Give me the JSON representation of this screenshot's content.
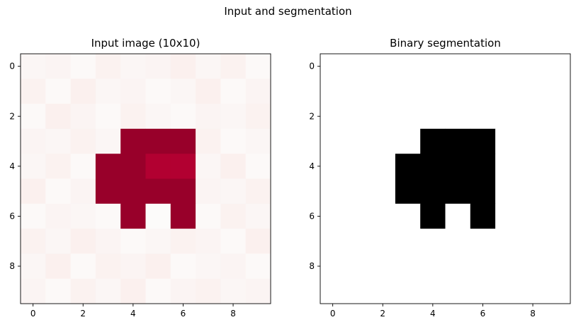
{
  "figure": {
    "suptitle": "Input and segmentation"
  },
  "chart_data": [
    {
      "type": "heatmap",
      "title": "Input image (10x10)",
      "colormap": "RdBu-reversed-style (near-white low, dark red high)",
      "vmin": 0,
      "vmax": 1.1,
      "xlim": [
        -0.5,
        9.5
      ],
      "ylim": [
        9.5,
        -0.5
      ],
      "xticks": [
        0,
        2,
        4,
        6,
        8
      ],
      "yticks": [
        0,
        2,
        4,
        6,
        8
      ],
      "grid": false,
      "values": [
        [
          0.02,
          0.03,
          0.01,
          0.04,
          0.02,
          0.03,
          0.05,
          0.02,
          0.04,
          0.01
        ],
        [
          0.04,
          0.01,
          0.05,
          0.02,
          0.03,
          0.01,
          0.02,
          0.05,
          0.01,
          0.03
        ],
        [
          0.01,
          0.05,
          0.03,
          0.01,
          0.04,
          0.02,
          0.01,
          0.03,
          0.02,
          0.04
        ],
        [
          0.03,
          0.02,
          0.04,
          0.02,
          1.0,
          1.0,
          1.0,
          0.04,
          0.01,
          0.02
        ],
        [
          0.02,
          0.04,
          0.01,
          1.0,
          1.0,
          0.9,
          0.9,
          0.02,
          0.05,
          0.01
        ],
        [
          0.05,
          0.01,
          0.03,
          1.0,
          1.0,
          1.0,
          1.0,
          0.03,
          0.02,
          0.04
        ],
        [
          0.01,
          0.03,
          0.02,
          0.01,
          1.0,
          0.0,
          1.0,
          0.01,
          0.04,
          0.02
        ],
        [
          0.04,
          0.02,
          0.05,
          0.03,
          0.01,
          0.02,
          0.04,
          0.03,
          0.01,
          0.05
        ],
        [
          0.02,
          0.05,
          0.01,
          0.04,
          0.03,
          0.05,
          0.01,
          0.02,
          0.03,
          0.01
        ],
        [
          0.03,
          0.01,
          0.04,
          0.02,
          0.05,
          0.01,
          0.03,
          0.04,
          0.02,
          0.03
        ]
      ]
    },
    {
      "type": "heatmap",
      "title": "Binary segmentation",
      "colormap": "gray-reversed (0 white, 1 black)",
      "vmin": 0,
      "vmax": 1,
      "xlim": [
        -0.5,
        9.5
      ],
      "ylim": [
        9.5,
        -0.5
      ],
      "xticks": [
        0,
        2,
        4,
        6,
        8
      ],
      "yticks": [
        0,
        2,
        4,
        6,
        8
      ],
      "grid": false,
      "values": [
        [
          0,
          0,
          0,
          0,
          0,
          0,
          0,
          0,
          0,
          0
        ],
        [
          0,
          0,
          0,
          0,
          0,
          0,
          0,
          0,
          0,
          0
        ],
        [
          0,
          0,
          0,
          0,
          0,
          0,
          0,
          0,
          0,
          0
        ],
        [
          0,
          0,
          0,
          0,
          1,
          1,
          1,
          0,
          0,
          0
        ],
        [
          0,
          0,
          0,
          1,
          1,
          1,
          1,
          0,
          0,
          0
        ],
        [
          0,
          0,
          0,
          1,
          1,
          1,
          1,
          0,
          0,
          0
        ],
        [
          0,
          0,
          0,
          0,
          1,
          0,
          1,
          0,
          0,
          0
        ],
        [
          0,
          0,
          0,
          0,
          0,
          0,
          0,
          0,
          0,
          0
        ],
        [
          0,
          0,
          0,
          0,
          0,
          0,
          0,
          0,
          0,
          0
        ],
        [
          0,
          0,
          0,
          0,
          0,
          0,
          0,
          0,
          0,
          0
        ]
      ]
    }
  ]
}
